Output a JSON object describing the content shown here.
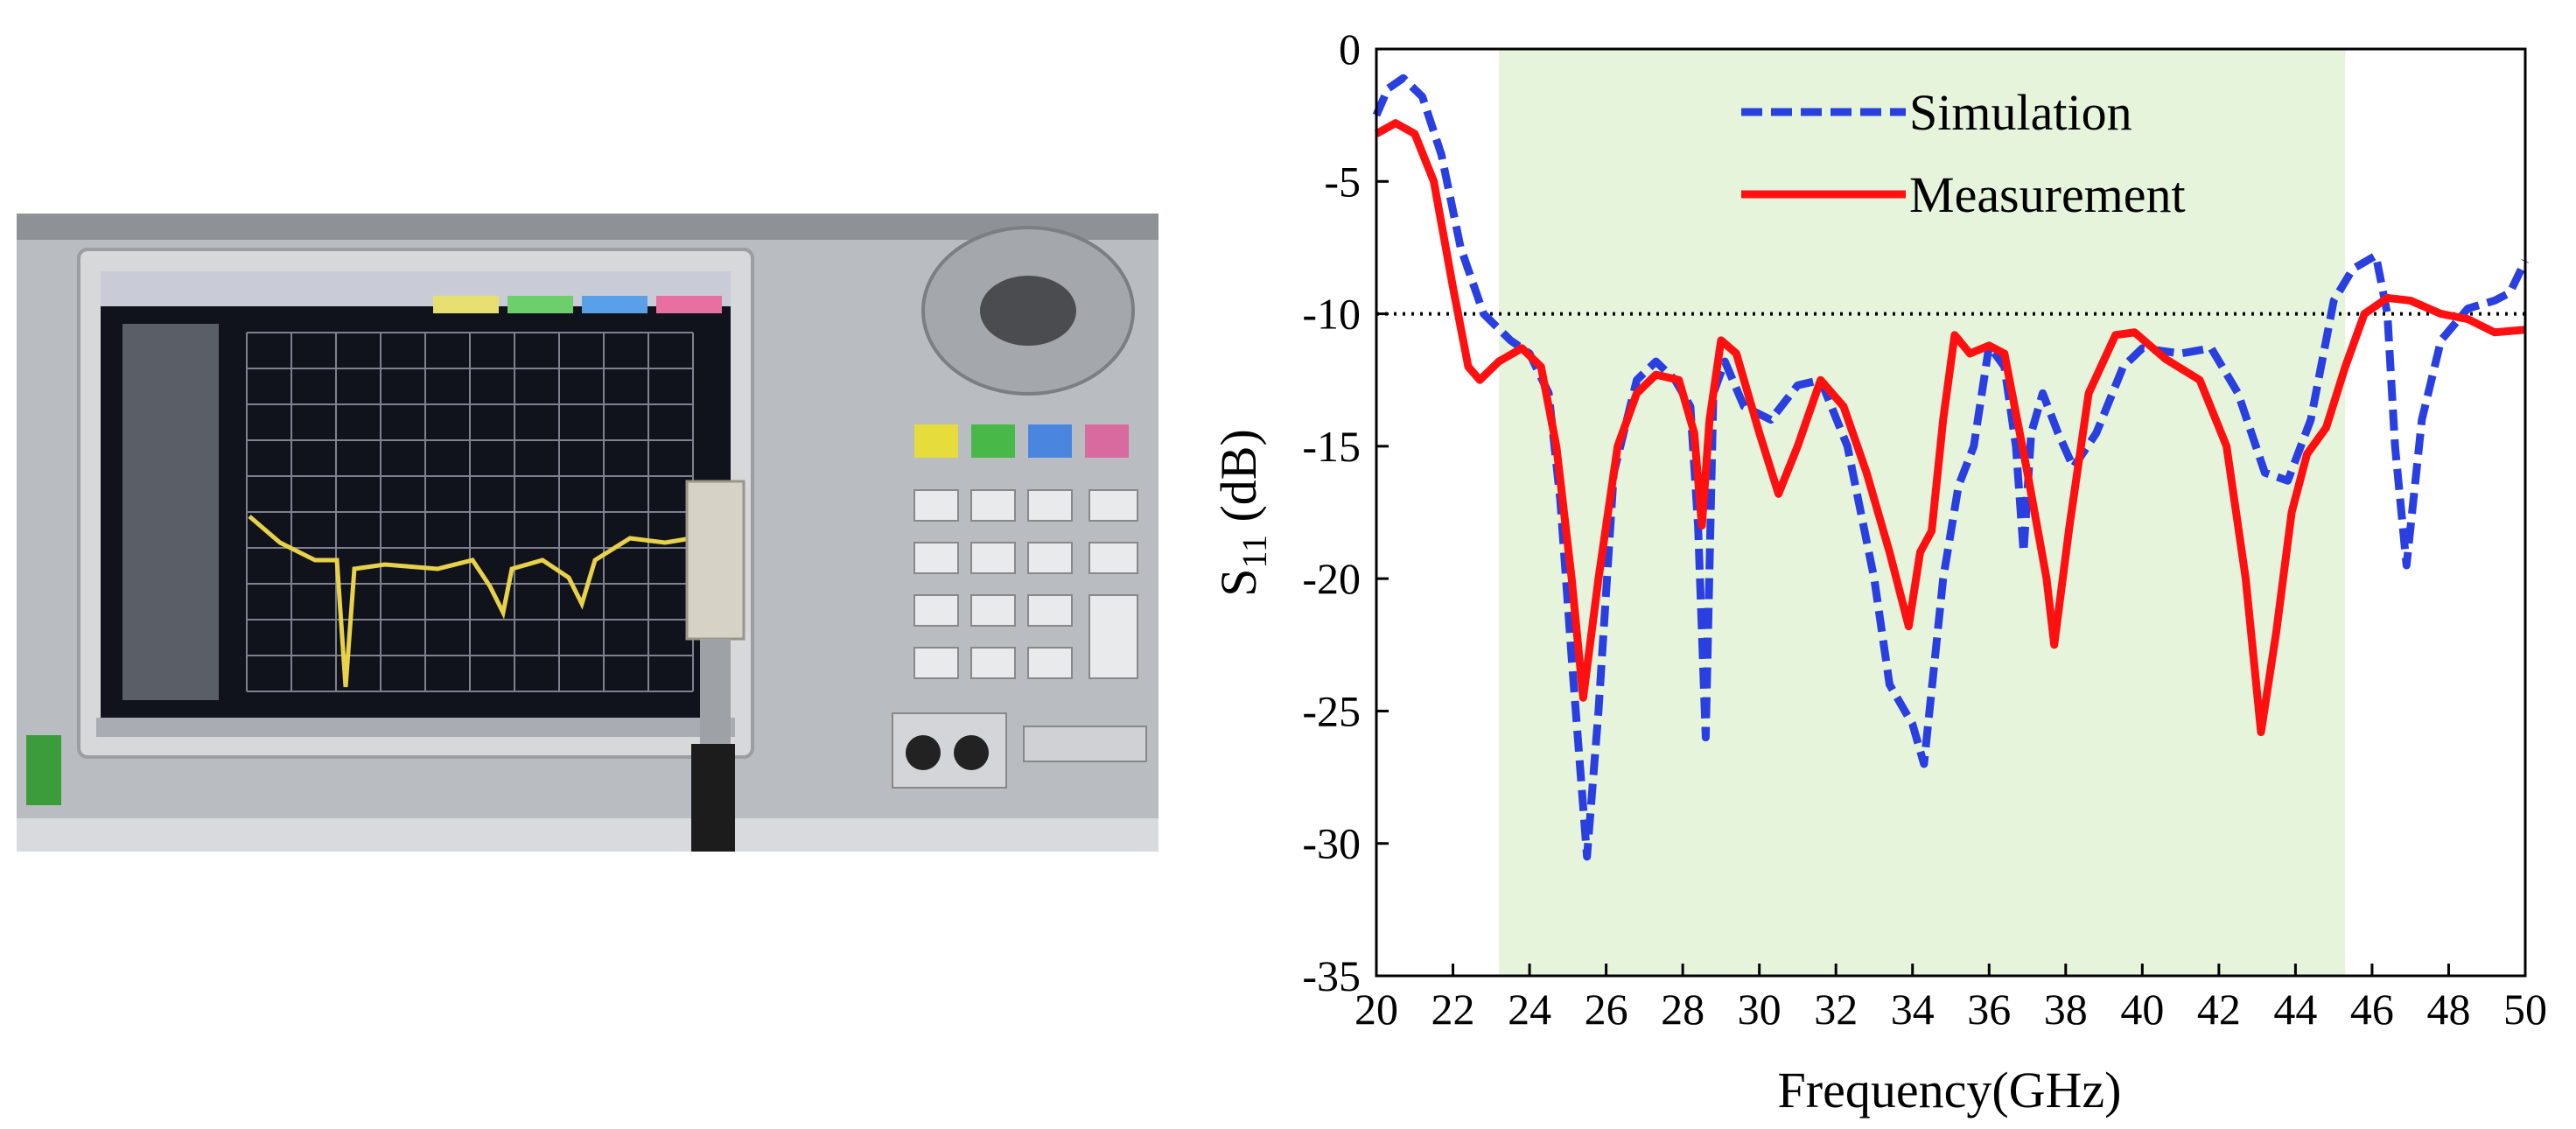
{
  "chart_data": {
    "type": "line",
    "xlabel": "Frequency(GHz)",
    "ylabel": {
      "main": "S",
      "sub": "11",
      "unit": " (dB)"
    },
    "xlim": [
      20,
      50
    ],
    "ylim": [
      -35,
      0
    ],
    "xticks": [
      20,
      22,
      24,
      26,
      28,
      30,
      32,
      34,
      36,
      38,
      40,
      42,
      44,
      46,
      48,
      50
    ],
    "yticks": [
      -35,
      -30,
      -25,
      -20,
      -15,
      -10,
      -5,
      0
    ],
    "highlight_x": [
      23.2,
      45.3
    ],
    "highlight_color": "#e7f4dc",
    "hline": -10,
    "legend": "upper center",
    "series": [
      {
        "name": "Simulation",
        "color": "#2a3fe0",
        "dash": true,
        "x": [
          20,
          20.3,
          20.7,
          21.2,
          21.7,
          22.2,
          22.8,
          23.5,
          24,
          24.5,
          24.8,
          25.1,
          25.5,
          25.8,
          26.2,
          26.8,
          27.3,
          27.8,
          28.2,
          28.4,
          28.6,
          28.8,
          29.1,
          29.6,
          30.3,
          31,
          31.6,
          32.3,
          33,
          33.4,
          34,
          34.3,
          34.8,
          35.2,
          35.6,
          36,
          36.4,
          36.7,
          36.9,
          37.1,
          37.4,
          37.8,
          38.2,
          38.8,
          39.5,
          40,
          41,
          41.8,
          42.5,
          43.2,
          43.8,
          44.4,
          45,
          45.5,
          46.1,
          46.4,
          46.6,
          46.9,
          47.3,
          47.8,
          48.5,
          49.2,
          49.6,
          50
        ],
        "values": [
          -2.5,
          -1.5,
          -1.1,
          -1.8,
          -4,
          -7.5,
          -10,
          -11,
          -11.5,
          -13,
          -17,
          -23,
          -30.5,
          -25,
          -16,
          -12.5,
          -11.8,
          -12.5,
          -13.5,
          -18,
          -26,
          -13,
          -11.8,
          -13.5,
          -14,
          -12.7,
          -12.5,
          -15,
          -20,
          -24,
          -25.5,
          -27,
          -20,
          -16.5,
          -15,
          -11.2,
          -12,
          -15,
          -19,
          -14.5,
          -13,
          -14.5,
          -15.8,
          -14.5,
          -12,
          -11.3,
          -11.5,
          -11.3,
          -13,
          -16,
          -16.3,
          -14,
          -9.5,
          -8.3,
          -7.8,
          -10,
          -15,
          -19.5,
          -14,
          -11,
          -9.8,
          -9.5,
          -9.2,
          -8
        ]
      },
      {
        "name": "Measurement",
        "color": "#ff1010",
        "dash": false,
        "x": [
          20,
          20.5,
          21,
          21.5,
          22,
          22.4,
          22.7,
          23.2,
          23.8,
          24.3,
          24.7,
          25.1,
          25.4,
          25.8,
          26.3,
          26.8,
          27.3,
          27.9,
          28.3,
          28.5,
          28.7,
          29,
          29.4,
          30,
          30.5,
          31,
          31.6,
          32.2,
          32.8,
          33.4,
          33.9,
          34.2,
          34.5,
          34.8,
          35.1,
          35.5,
          36,
          36.4,
          37,
          37.5,
          37.7,
          38.1,
          38.6,
          39.3,
          39.8,
          40.6,
          41.5,
          42.2,
          42.7,
          43.1,
          43.5,
          43.9,
          44.3,
          44.8,
          45.3,
          45.8,
          46.4,
          47,
          47.8,
          48.5,
          49.2,
          50
        ],
        "values": [
          -3.2,
          -2.8,
          -3.2,
          -5,
          -9,
          -12,
          -12.5,
          -11.8,
          -11.3,
          -12,
          -15,
          -20,
          -24.5,
          -20,
          -15,
          -13,
          -12.3,
          -12.5,
          -14.5,
          -18,
          -14,
          -11,
          -11.5,
          -14.5,
          -16.8,
          -15,
          -12.5,
          -13.5,
          -16,
          -19,
          -21.8,
          -19,
          -18.2,
          -14,
          -10.8,
          -11.5,
          -11.2,
          -11.5,
          -16,
          -20,
          -22.5,
          -18,
          -13,
          -10.8,
          -10.7,
          -11.7,
          -12.5,
          -15,
          -20,
          -25.8,
          -22,
          -17.5,
          -15.3,
          -14.3,
          -12,
          -10,
          -9.4,
          -9.5,
          -10,
          -10.2,
          -10.7,
          -10.6
        ]
      }
    ]
  }
}
